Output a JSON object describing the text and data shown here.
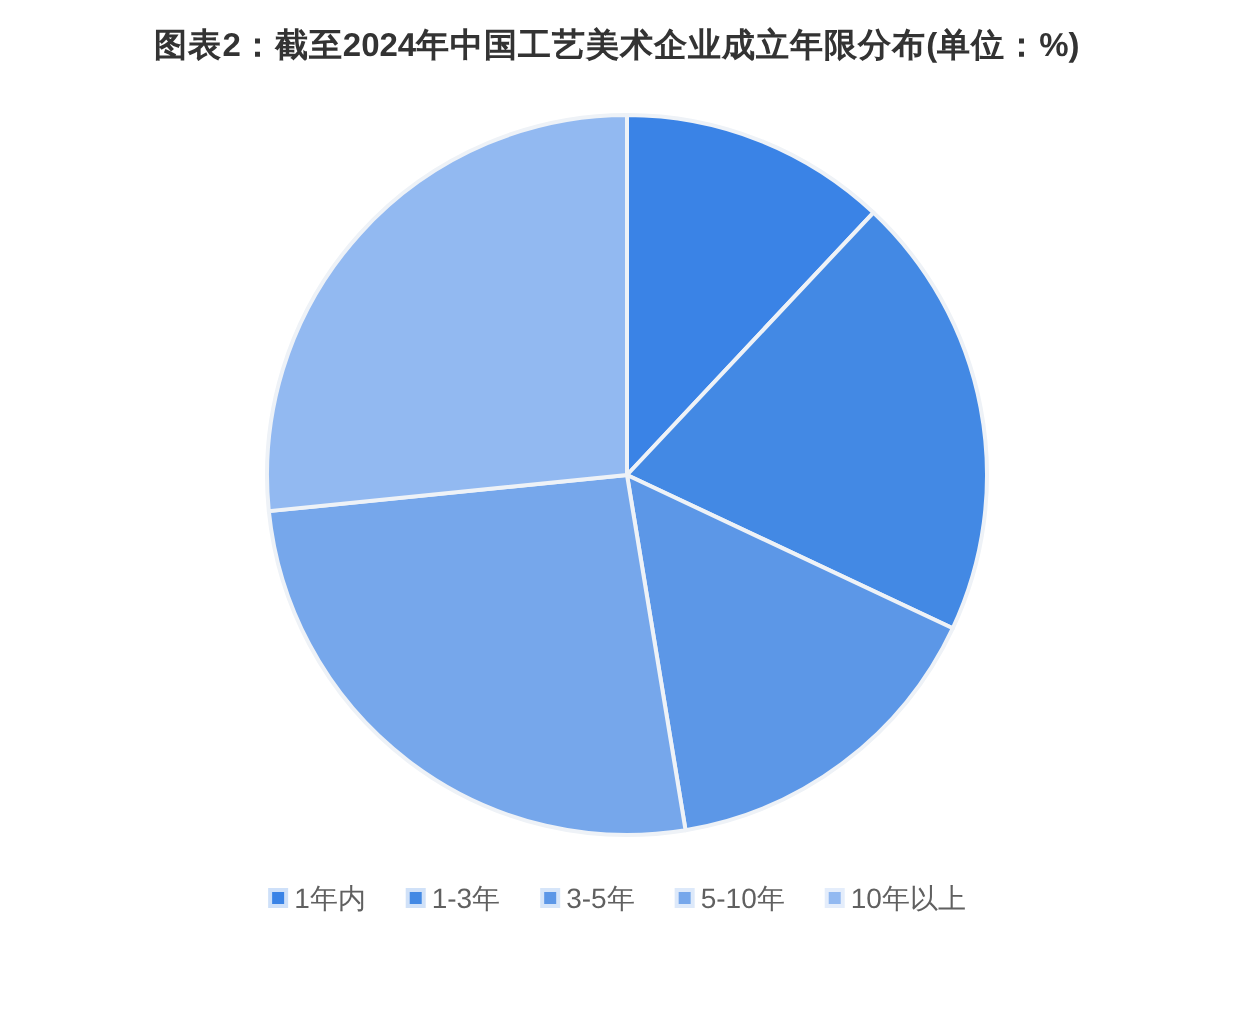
{
  "chart_data": {
    "type": "pie",
    "title": "图表2：截至2024年中国工艺美术企业成立年限分布(单位：%)",
    "categories": [
      "1年内",
      "1-3年",
      "3-5年",
      "5-10年",
      "10年以上"
    ],
    "values": [
      12.0,
      20.0,
      15.4,
      26.0,
      26.6
    ],
    "colors": [
      "#3a83e6",
      "#4389e4",
      "#5c97e7",
      "#76a7eb",
      "#92b9f1"
    ],
    "legend": "bottom"
  }
}
